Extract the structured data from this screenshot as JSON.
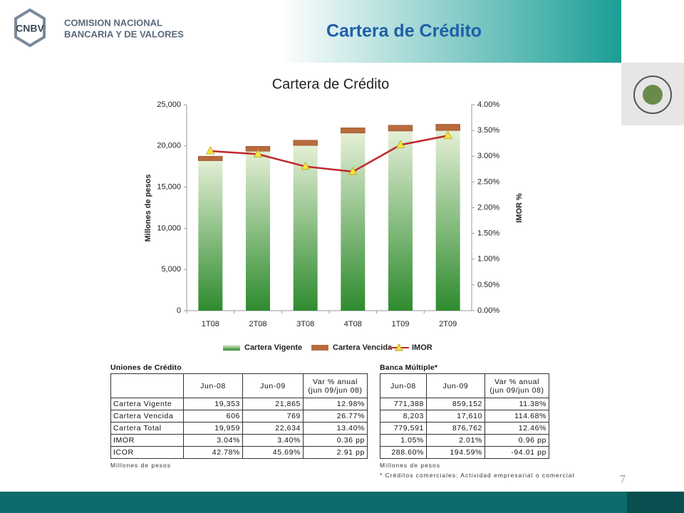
{
  "header": {
    "title": "Cartera de Crédito",
    "logo_mark": "CNBV",
    "logo_line1": "COMISION NACIONAL",
    "logo_line2": "BANCARIA Y DE VALORES"
  },
  "chart_data": {
    "type": "bar-line",
    "title": "Cartera de Crédito",
    "categories": [
      "1T08",
      "2T08",
      "3T08",
      "4T08",
      "1T09",
      "2T09"
    ],
    "series": [
      {
        "name": "Cartera Vigente",
        "color": "#2e8b2e",
        "values": [
          18200,
          19353,
          20050,
          21550,
          21800,
          21865
        ]
      },
      {
        "name": "Cartera Vencida",
        "color": "#b86a3c",
        "values": [
          560,
          606,
          650,
          650,
          720,
          769
        ]
      },
      {
        "name": "IMOR",
        "color": "#c0282d",
        "marker_color": "#f5e53b",
        "axis": "y2",
        "values": [
          3.1,
          3.04,
          2.8,
          2.7,
          3.22,
          3.4
        ]
      }
    ],
    "ylabel": "Millones de pesos",
    "y2label": "IMOR %",
    "ylim": [
      0,
      25000
    ],
    "yticks": [
      0,
      {
        "value": 5000,
        "label": "5,000"
      },
      {
        "value": 10000,
        "label": "10,000"
      },
      {
        "value": 15000,
        "label": "15,000"
      },
      {
        "value": 20000,
        "label": "20,000"
      },
      {
        "value": 25000,
        "label": "25,000"
      }
    ],
    "y2lim": [
      0,
      4
    ],
    "y2ticks": [
      {
        "value": 0,
        "label": "0.00%"
      },
      {
        "value": 0.5,
        "label": "0.50%"
      },
      {
        "value": 1,
        "label": "1.00%"
      },
      {
        "value": 1.5,
        "label": "1.50%"
      },
      {
        "value": 2,
        "label": "2.00%"
      },
      {
        "value": 2.5,
        "label": "2.50%"
      },
      {
        "value": 3,
        "label": "3.00%"
      },
      {
        "value": 3.5,
        "label": "3.50%"
      },
      {
        "value": 4,
        "label": "4.00%"
      }
    ],
    "grid": false
  },
  "tables": [
    {
      "title": "Uniones de Crédito",
      "columns": [
        "Jun-08",
        "Jun-09"
      ],
      "change_header": [
        "Var % anual",
        "(jun 09/jun 08)"
      ],
      "rows": [
        [
          "Cartera Vigente",
          "19,353",
          "21,865",
          "12.98%"
        ],
        [
          "Cartera Vencida",
          "606",
          "769",
          "26.77%"
        ],
        [
          "Cartera Total",
          "19,959",
          "22,634",
          "13.40%"
        ],
        [
          "IMOR",
          "3.04%",
          "3.40%",
          "0.36 pp"
        ],
        [
          "ICOR",
          "42.78%",
          "45.69%",
          "2.91 pp"
        ]
      ],
      "notes": [
        "Millones de pesos"
      ]
    },
    {
      "title": "Banca Múltiple*",
      "columns": [
        "Jun-08",
        "Jun-09"
      ],
      "change_header": [
        "Var % anual",
        "(jun 09/jun 08)"
      ],
      "rows": [
        [
          "771,388",
          "859,152",
          "11.38%"
        ],
        [
          "8,203",
          "17,610",
          "114.68%"
        ],
        [
          "779,591",
          "876,762",
          "12.46%"
        ],
        [
          "1.05%",
          "2.01%",
          "0.96 pp"
        ],
        [
          "288.60%",
          "194.59%",
          "-94.01 pp"
        ]
      ],
      "notes": [
        "Millones de pesos",
        "* Créditos comerciales: Actividad empresarial o comercial"
      ]
    }
  ],
  "footer": {
    "page_number": "7"
  }
}
